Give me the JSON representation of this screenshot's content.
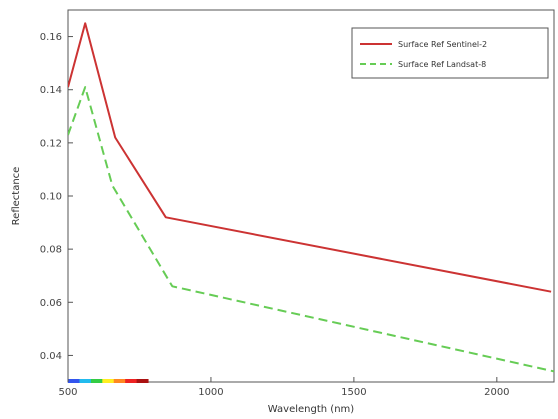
{
  "chart_data": {
    "type": "line",
    "xlabel": "Wavelength (nm)",
    "ylabel": "Reflectance",
    "xlim": [
      500,
      2200
    ],
    "ylim": [
      0.03,
      0.17
    ],
    "x_ticks": [
      500,
      1000,
      1500,
      2000
    ],
    "x_tick_labels": [
      "500",
      "1000",
      "1500",
      "2000"
    ],
    "y_ticks": [
      0.04,
      0.06,
      0.08,
      0.1,
      0.12,
      0.14,
      0.16
    ],
    "y_tick_labels": [
      "0.04",
      "0.06",
      "0.08",
      "0.10",
      "0.12",
      "0.14",
      "0.16"
    ],
    "grid": false,
    "legend_position": "top-right",
    "series": [
      {
        "name": "Surface Ref Sentinel-2",
        "color": "#cc3333",
        "style": "solid",
        "x": [
          500,
          560,
          665,
          842,
          2190
        ],
        "y": [
          0.141,
          0.165,
          0.122,
          0.092,
          0.064
        ]
      },
      {
        "name": "Surface Ref Landsat-8",
        "color": "#66cc55",
        "style": "dashed",
        "x": [
          500,
          560,
          655,
          865,
          2200
        ],
        "y": [
          0.123,
          0.141,
          0.104,
          0.066,
          0.034
        ]
      }
    ],
    "spectrum_bar": {
      "x_range": [
        500,
        780
      ],
      "colors": [
        "#3355ee",
        "#22bbee",
        "#33cc44",
        "#ffee22",
        "#ff8822",
        "#ee2222",
        "#aa1111"
      ]
    }
  }
}
